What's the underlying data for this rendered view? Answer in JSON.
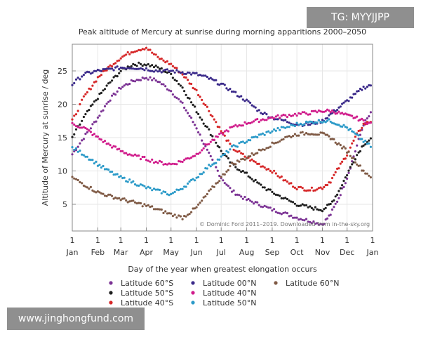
{
  "chart_data": {
    "type": "scatter",
    "title": "Peak altitude of Mercury at sunrise during morning apparitions 2000–2050",
    "xlabel": "Day of the year when greatest elongation occurs",
    "ylabel": "Altitude of Mercury at sunrise / deg",
    "xlim": [
      1,
      366
    ],
    "ylim": [
      1,
      29
    ],
    "grid": true,
    "legend_placement": "bottom",
    "yticks": [
      5,
      10,
      15,
      20,
      25
    ],
    "xtick_days": [
      1,
      32,
      60,
      91,
      121,
      152,
      182,
      213,
      244,
      274,
      305,
      335,
      366
    ],
    "xtick_labels": [
      "1",
      "1",
      "1",
      "1",
      "1",
      "1",
      "1",
      "1",
      "1",
      "1",
      "1",
      "1",
      "1"
    ],
    "xtick_months": [
      "Jan",
      "Feb",
      "Mar",
      "Apr",
      "May",
      "Jun",
      "Jul",
      "Aug",
      "Sep",
      "Oct",
      "Nov",
      "Dec",
      "Jan"
    ],
    "credit": "© Dominic Ford 2011–2019.  Downloaded from in-the-sky.org",
    "series": [
      {
        "name": "Latitude 60°S",
        "color": "#7b3294",
        "x": [
          1,
          15,
          32,
          45,
          60,
          75,
          91,
          105,
          121,
          135,
          152,
          165,
          182,
          195,
          213,
          228,
          244,
          260,
          274,
          290,
          305,
          315,
          325,
          335,
          345,
          355,
          366
        ],
        "y": [
          12.5,
          15,
          18,
          20.5,
          22.5,
          23.5,
          24,
          23.5,
          22,
          20,
          16.5,
          13,
          9,
          7,
          5.7,
          5,
          4.2,
          3.6,
          3,
          2.5,
          2,
          3.5,
          6,
          9,
          13,
          17,
          19
        ]
      },
      {
        "name": "Latitude 50°S",
        "color": "#1f1f1f",
        "x": [
          1,
          15,
          32,
          45,
          60,
          75,
          91,
          105,
          121,
          135,
          152,
          165,
          182,
          195,
          213,
          228,
          244,
          260,
          274,
          290,
          305,
          315,
          325,
          335,
          345,
          355,
          366
        ],
        "y": [
          15,
          18,
          21,
          23,
          25,
          26,
          26,
          25.5,
          24.5,
          22.5,
          19,
          16.5,
          13,
          11,
          9.5,
          8,
          6.8,
          5.8,
          5,
          4.5,
          4.2,
          5,
          7,
          9.5,
          12,
          14,
          15
        ]
      },
      {
        "name": "Latitude 40°S",
        "color": "#d62728",
        "x": [
          1,
          15,
          32,
          45,
          60,
          75,
          91,
          105,
          121,
          135,
          152,
          165,
          182,
          195,
          213,
          228,
          244,
          260,
          274,
          290,
          305,
          315,
          325,
          335,
          345,
          355,
          366
        ],
        "y": [
          17.5,
          21,
          24,
          25.5,
          27,
          28,
          28.5,
          27,
          26,
          24.5,
          22,
          19.5,
          16,
          13.5,
          12,
          11,
          10,
          8.5,
          7.5,
          7.2,
          7.5,
          8.5,
          10.5,
          12.5,
          15,
          17,
          17.5
        ]
      },
      {
        "name": "Latitude 00°N",
        "color": "#3b2a8a",
        "x": [
          1,
          15,
          32,
          45,
          60,
          75,
          91,
          105,
          121,
          135,
          152,
          165,
          182,
          195,
          213,
          228,
          244,
          260,
          274,
          290,
          305,
          315,
          325,
          335,
          345,
          355,
          366
        ],
        "y": [
          23,
          24.5,
          25,
          25.2,
          25.5,
          25.5,
          25.3,
          25,
          25,
          24.8,
          24.5,
          24,
          23,
          22,
          20.5,
          19,
          18,
          17.5,
          17,
          17,
          17.5,
          18.5,
          19.5,
          20.5,
          21.5,
          22.5,
          23
        ]
      },
      {
        "name": "Latitude 40°N",
        "color": "#d01c8b",
        "x": [
          1,
          15,
          32,
          45,
          60,
          75,
          91,
          105,
          121,
          135,
          152,
          165,
          182,
          195,
          213,
          228,
          244,
          260,
          274,
          290,
          305,
          315,
          325,
          335,
          345,
          355,
          366
        ],
        "y": [
          17,
          16.5,
          15,
          14,
          13,
          12.3,
          11.8,
          11.3,
          11,
          11.5,
          12.5,
          14,
          15.5,
          16.5,
          17.2,
          17.6,
          18,
          18.3,
          18.5,
          18.7,
          19,
          19,
          18.7,
          18.3,
          18,
          17.5,
          17
        ]
      },
      {
        "name": "Latitude 50°N",
        "color": "#2b9ac8",
        "x": [
          1,
          15,
          32,
          45,
          60,
          75,
          91,
          105,
          121,
          135,
          152,
          165,
          182,
          195,
          213,
          228,
          244,
          260,
          274,
          290,
          305,
          315,
          325,
          335,
          345,
          355,
          366
        ],
        "y": [
          13.5,
          12.5,
          11,
          10,
          9,
          8.3,
          7.5,
          7,
          6.5,
          7.5,
          9,
          10.5,
          12,
          13.5,
          14.5,
          15.3,
          16,
          16.5,
          17,
          17.3,
          17.5,
          17.5,
          17,
          16.5,
          15.5,
          14.5,
          13.5
        ]
      },
      {
        "name": "Latitude 60°N",
        "color": "#7f5a45",
        "x": [
          1,
          15,
          32,
          45,
          60,
          75,
          91,
          105,
          121,
          135,
          152,
          165,
          182,
          195,
          213,
          228,
          244,
          260,
          274,
          290,
          305,
          315,
          325,
          335,
          345,
          355,
          366
        ],
        "y": [
          9,
          8,
          6.8,
          6.3,
          5.8,
          5.3,
          4.8,
          4.2,
          3.5,
          3,
          4.5,
          6.5,
          9,
          11,
          12,
          13,
          14,
          15,
          15.5,
          15.7,
          15.5,
          15,
          14,
          13,
          11.5,
          10,
          9
        ]
      }
    ]
  },
  "watermarks": {
    "tag": "TG: MYYJJPP",
    "url": "www.jinghongfund.com"
  }
}
